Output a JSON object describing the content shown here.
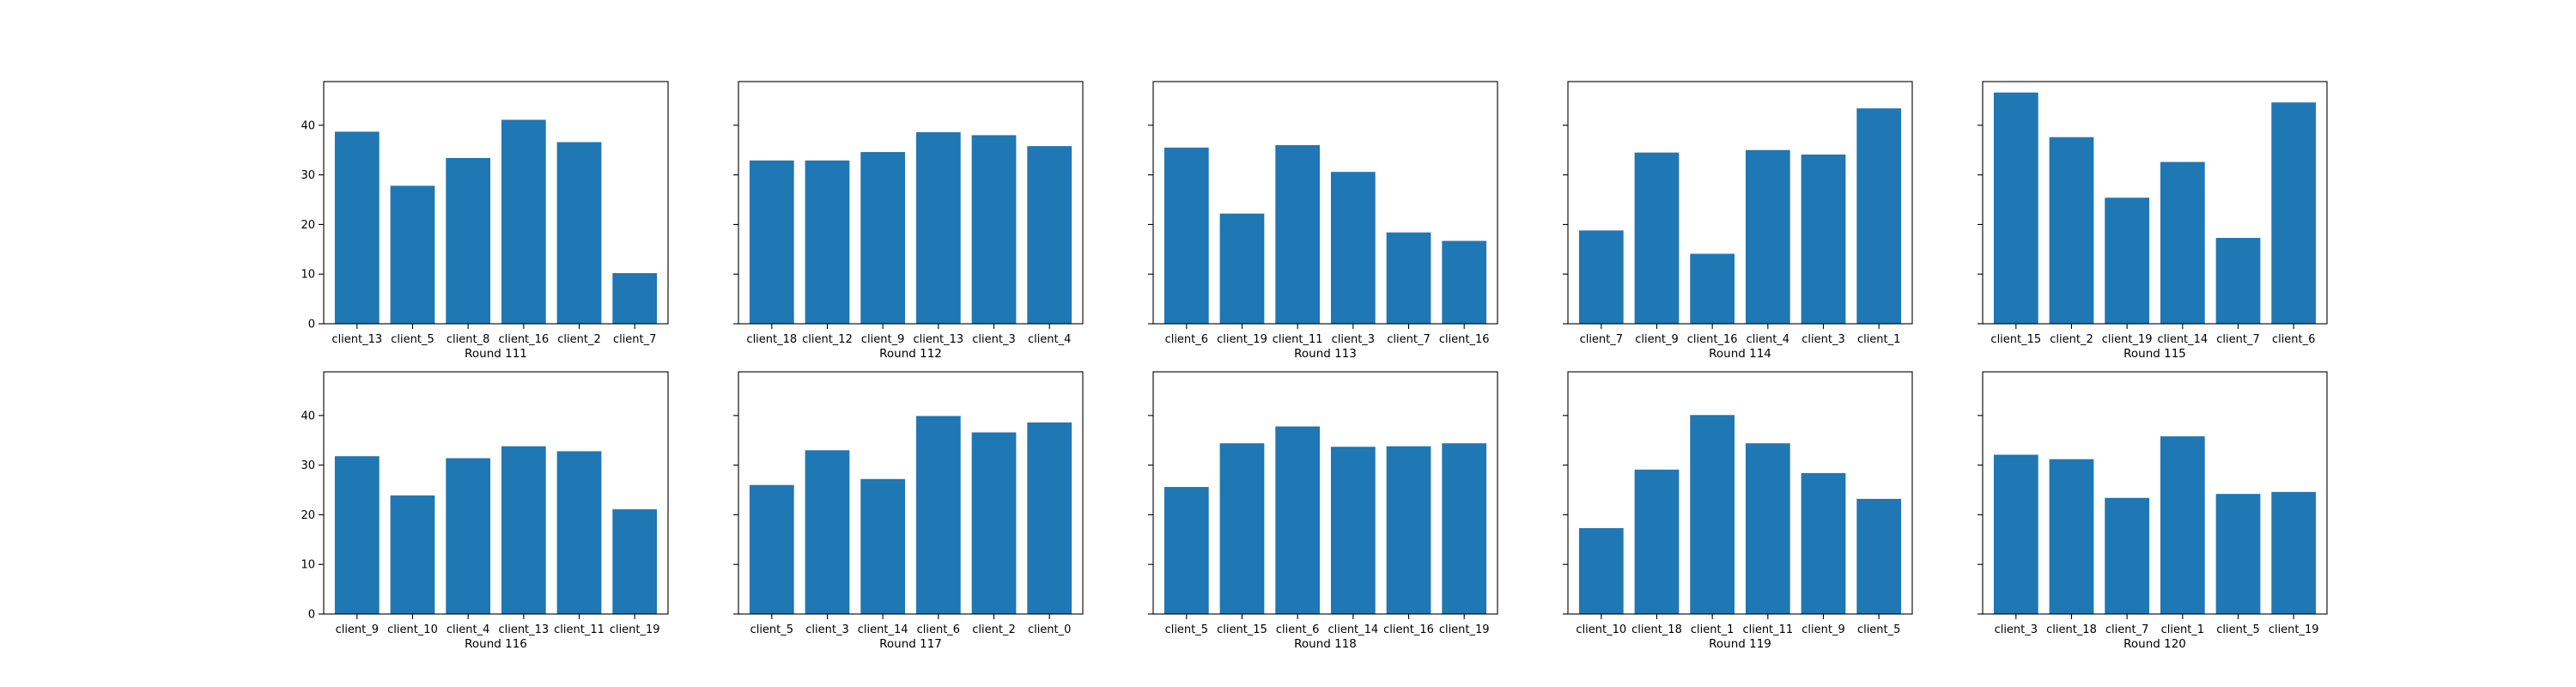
{
  "colors": {
    "bar": "#1f77b4",
    "axis": "#000000",
    "background": "#ffffff"
  },
  "chart_data": [
    {
      "type": "bar",
      "xlabel": "Round 111",
      "ylabel": "",
      "ylim": [
        0,
        48.8
      ],
      "yticks": [
        0,
        10,
        20,
        30,
        40
      ],
      "show_ytick_labels": true,
      "categories": [
        "client_13",
        "client_5",
        "client_8",
        "client_16",
        "client_2",
        "client_7"
      ],
      "values": [
        38.7,
        27.8,
        33.4,
        41.1,
        36.6,
        10.2
      ]
    },
    {
      "type": "bar",
      "xlabel": "Round 112",
      "ylabel": "",
      "ylim": [
        0,
        48.8
      ],
      "yticks": [
        0,
        10,
        20,
        30,
        40
      ],
      "show_ytick_labels": false,
      "categories": [
        "client_18",
        "client_12",
        "client_9",
        "client_13",
        "client_3",
        "client_4"
      ],
      "values": [
        32.9,
        32.9,
        34.6,
        38.6,
        38.0,
        35.8
      ]
    },
    {
      "type": "bar",
      "xlabel": "Round 113",
      "ylabel": "",
      "ylim": [
        0,
        48.8
      ],
      "yticks": [
        0,
        10,
        20,
        30,
        40
      ],
      "show_ytick_labels": false,
      "categories": [
        "client_6",
        "client_19",
        "client_11",
        "client_3",
        "client_7",
        "client_16"
      ],
      "values": [
        35.5,
        22.2,
        36.0,
        30.6,
        18.4,
        16.7
      ]
    },
    {
      "type": "bar",
      "xlabel": "Round 114",
      "ylabel": "",
      "ylim": [
        0,
        48.8
      ],
      "yticks": [
        0,
        10,
        20,
        30,
        40
      ],
      "show_ytick_labels": false,
      "categories": [
        "client_7",
        "client_9",
        "client_16",
        "client_4",
        "client_3",
        "client_1"
      ],
      "values": [
        18.8,
        34.5,
        14.1,
        35.0,
        34.1,
        43.4
      ]
    },
    {
      "type": "bar",
      "xlabel": "Round 115",
      "ylabel": "",
      "ylim": [
        0,
        48.8
      ],
      "yticks": [
        0,
        10,
        20,
        30,
        40
      ],
      "show_ytick_labels": false,
      "categories": [
        "client_15",
        "client_2",
        "client_19",
        "client_14",
        "client_7",
        "client_6"
      ],
      "values": [
        46.6,
        37.6,
        25.4,
        32.6,
        17.3,
        44.6
      ]
    },
    {
      "type": "bar",
      "xlabel": "Round 116",
      "ylabel": "",
      "ylim": [
        0,
        48.8
      ],
      "yticks": [
        0,
        10,
        20,
        30,
        40
      ],
      "show_ytick_labels": true,
      "categories": [
        "client_9",
        "client_10",
        "client_4",
        "client_13",
        "client_11",
        "client_19"
      ],
      "values": [
        31.8,
        23.9,
        31.4,
        33.8,
        32.8,
        21.1
      ]
    },
    {
      "type": "bar",
      "xlabel": "Round 117",
      "ylabel": "",
      "ylim": [
        0,
        48.8
      ],
      "yticks": [
        0,
        10,
        20,
        30,
        40
      ],
      "show_ytick_labels": false,
      "categories": [
        "client_5",
        "client_3",
        "client_14",
        "client_6",
        "client_2",
        "client_0"
      ],
      "values": [
        26.0,
        33.0,
        27.2,
        39.9,
        36.6,
        38.6
      ]
    },
    {
      "type": "bar",
      "xlabel": "Round 118",
      "ylabel": "",
      "ylim": [
        0,
        48.8
      ],
      "yticks": [
        0,
        10,
        20,
        30,
        40
      ],
      "show_ytick_labels": false,
      "categories": [
        "client_5",
        "client_15",
        "client_6",
        "client_14",
        "client_16",
        "client_19"
      ],
      "values": [
        25.6,
        34.4,
        37.8,
        33.7,
        33.8,
        34.4
      ]
    },
    {
      "type": "bar",
      "xlabel": "Round 119",
      "ylabel": "",
      "ylim": [
        0,
        48.8
      ],
      "yticks": [
        0,
        10,
        20,
        30,
        40
      ],
      "show_ytick_labels": false,
      "categories": [
        "client_10",
        "client_18",
        "client_1",
        "client_11",
        "client_9",
        "client_5"
      ],
      "values": [
        17.3,
        29.1,
        40.1,
        34.4,
        28.4,
        23.2
      ]
    },
    {
      "type": "bar",
      "xlabel": "Round 120",
      "ylabel": "",
      "ylim": [
        0,
        48.8
      ],
      "yticks": [
        0,
        10,
        20,
        30,
        40
      ],
      "show_ytick_labels": false,
      "categories": [
        "client_3",
        "client_18",
        "client_7",
        "client_1",
        "client_5",
        "client_19"
      ],
      "values": [
        32.1,
        31.2,
        23.4,
        35.8,
        24.2,
        24.6
      ]
    }
  ]
}
